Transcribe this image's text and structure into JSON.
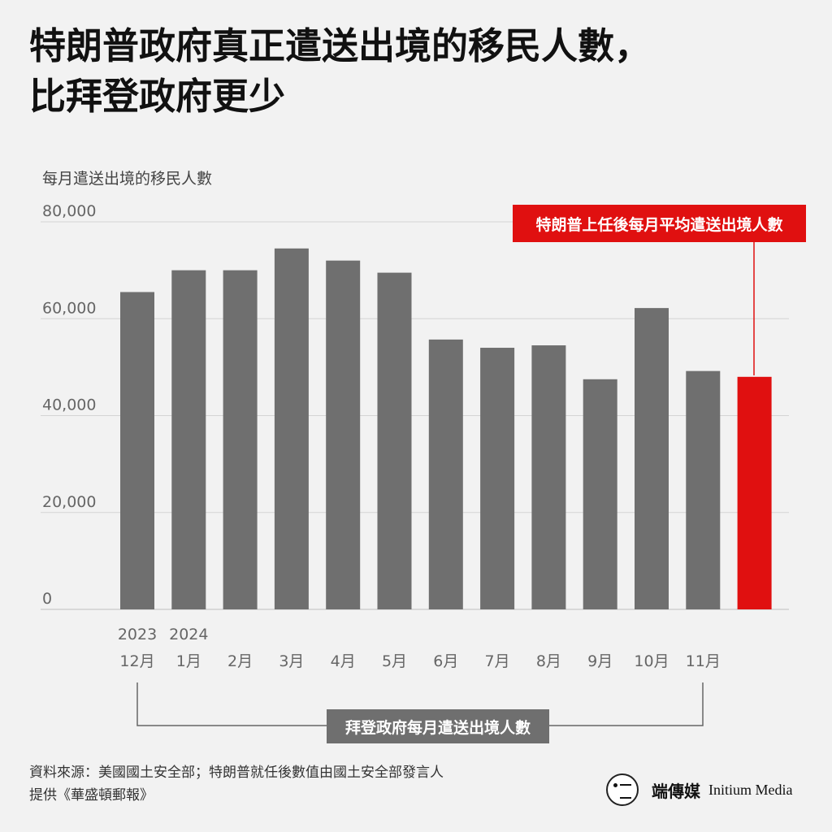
{
  "title_lines": [
    "特朗普政府真正遣送出境的移民人數，",
    "比拜登政府更少"
  ],
  "chart_data": {
    "type": "bar",
    "ylabel": "每月遣送出境的移民人數",
    "ylim": [
      0,
      80000
    ],
    "yticks": [
      0,
      20000,
      40000,
      60000,
      80000
    ],
    "ytick_labels": [
      "0",
      "20,000",
      "40,000",
      "60,000",
      "80,000"
    ],
    "grid": true,
    "categories": [
      "12月",
      "1月",
      "2月",
      "3月",
      "4月",
      "5月",
      "6月",
      "7月",
      "8月",
      "9月",
      "10月",
      "11月",
      ""
    ],
    "year_labels": [
      "2023",
      "2024"
    ],
    "values": [
      65500,
      70000,
      70000,
      74500,
      72000,
      69500,
      55700,
      54000,
      54500,
      47500,
      62200,
      49200,
      48000
    ],
    "bar_color": "#6f6f6f",
    "highlight_color": "#e01010",
    "highlight_label": "特朗普上任後每月平均遣送出境人數",
    "bracket_label": "拜登政府每月遣送出境人數"
  },
  "source_lines": [
    "資料來源：美國國土安全部；特朗普就任後數值由國土安全部發言人",
    "提供《華盛頓郵報》"
  ],
  "logo": {
    "cn": "端傳媒",
    "en": "Initium Media"
  }
}
